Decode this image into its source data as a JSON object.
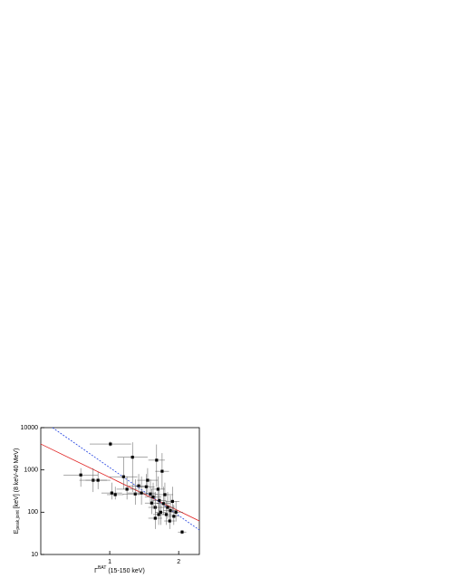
{
  "chart_data": {
    "type": "scatter",
    "y_label": {
      "main": "E",
      "sub": "peak,joint",
      "rest": " [keV] (8 keV-40 MeV)"
    },
    "x_label": {
      "main": "Γ",
      "sup": "BAT",
      "rest": " (15-150 keV)"
    },
    "xlim": [
      0,
      2.3
    ],
    "xticks": [
      1,
      2
    ],
    "ylim": [
      10,
      10000
    ],
    "yticks": [
      10,
      100,
      1000,
      10000
    ],
    "ylog": true,
    "color": "#000000",
    "x": [
      0.58,
      0.76,
      0.83,
      1.01,
      1.03,
      1.08,
      1.2,
      1.25,
      1.33,
      1.37,
      1.42,
      1.46,
      1.53,
      1.55,
      1.59,
      1.61,
      1.63,
      1.66,
      1.68,
      1.7,
      1.72,
      1.74,
      1.76,
      1.78,
      1.8,
      1.82,
      1.84,
      1.87,
      1.88,
      1.91,
      1.93,
      1.96,
      2.05,
      1.66,
      1.71
    ],
    "y": [
      760,
      570,
      570,
      4100,
      285,
      260,
      690,
      350,
      2000,
      270,
      420,
      285,
      400,
      570,
      270,
      165,
      230,
      130,
      1700,
      350,
      190,
      100,
      930,
      160,
      260,
      88,
      130,
      62,
      110,
      180,
      80,
      100,
      34,
      72,
      88
    ],
    "xerr": [
      0.25,
      0.2,
      0.18,
      0.3,
      0.15,
      0.12,
      0.2,
      0.15,
      0.22,
      0.18,
      0.15,
      0.2,
      0.12,
      0.15,
      0.1,
      0.1,
      0.12,
      0.1,
      0.12,
      0.1,
      0.1,
      0.08,
      0.1,
      0.1,
      0.12,
      0.08,
      0.1,
      0.08,
      0.1,
      0.1,
      0.08,
      0.1,
      0.06,
      0.1,
      0.08
    ],
    "ylow": [
      400,
      300,
      350,
      3600,
      200,
      200,
      350,
      200,
      300,
      150,
      250,
      150,
      250,
      300,
      150,
      90,
      120,
      70,
      400,
      200,
      100,
      50,
      350,
      90,
      130,
      50,
      70,
      40,
      60,
      100,
      50,
      60,
      30,
      40,
      50
    ],
    "yhigh": [
      1100,
      1100,
      900,
      4700,
      500,
      400,
      2000,
      700,
      4500,
      600,
      800,
      700,
      800,
      1100,
      600,
      350,
      500,
      300,
      4000,
      700,
      400,
      200,
      2500,
      400,
      500,
      180,
      300,
      120,
      250,
      400,
      150,
      180,
      38,
      150,
      180
    ],
    "lines": [
      {
        "color": "#e02020",
        "dash": "none",
        "x": [
          0,
          2.3
        ],
        "y": [
          4100,
          62
        ]
      },
      {
        "color": "#2040e0",
        "dash": "2,1.5",
        "x": [
          0.17,
          2.3
        ],
        "y": [
          10000,
          38
        ]
      }
    ]
  }
}
